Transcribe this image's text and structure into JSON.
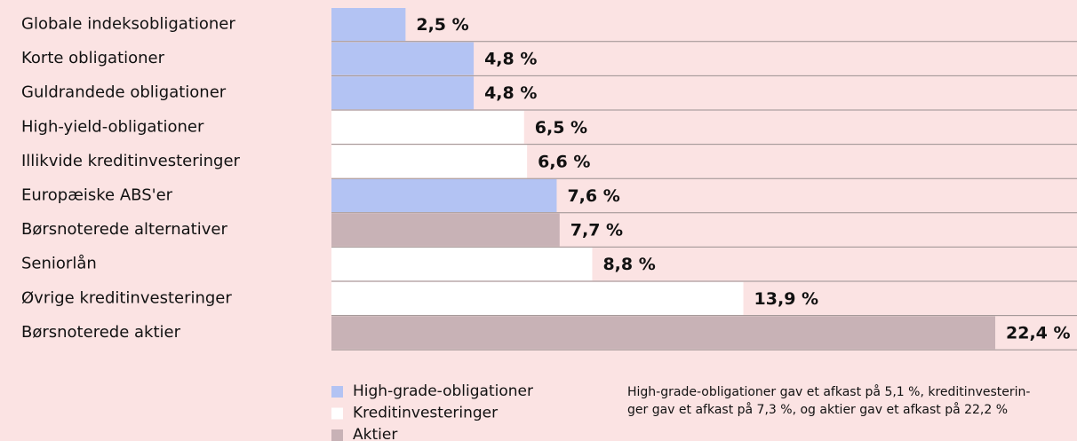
{
  "chart_data": {
    "type": "bar",
    "orientation": "horizontal",
    "categories": [
      "Globale indeksobligationer",
      "Korte obligationer",
      "Guldrandede obligationer",
      "High-yield-obligationer",
      "Illikvide kreditinvesteringer",
      "Europæiske ABS'er",
      "Børsnoterede alternativer",
      "Seniorlån",
      "Øvrige kreditinvesteringer",
      "Børsnoterede aktier"
    ],
    "series": [
      {
        "name": "High-grade-obligationer",
        "color": "#b3c3f3",
        "values": [
          2.5,
          4.8,
          4.8,
          null,
          null,
          7.6,
          null,
          null,
          null,
          null
        ],
        "value_labels": [
          "2,5 %",
          "4,8 %",
          "4,8 %",
          null,
          null,
          "7,6 %",
          null,
          null,
          null,
          null
        ]
      },
      {
        "name": "Kreditinvesteringer",
        "color": "#ffffff",
        "values": [
          null,
          null,
          null,
          6.5,
          6.6,
          null,
          null,
          8.8,
          13.9,
          null
        ],
        "value_labels": [
          null,
          null,
          null,
          "6,5 %",
          "6,6 %",
          null,
          null,
          "8,8 %",
          "13,9 %",
          null
        ]
      },
      {
        "name": "Aktier",
        "color": "#c8b2b6",
        "values": [
          null,
          null,
          null,
          null,
          null,
          null,
          7.7,
          null,
          null,
          22.4
        ],
        "value_labels": [
          null,
          null,
          null,
          null,
          null,
          null,
          "7,7 %",
          null,
          null,
          "22,4 %"
        ]
      }
    ],
    "legend": "bottom-left",
    "note": [
      "High-grade-obligationer gav et afkast på 5,1 %, kreditinvesterin-",
      "ger gav et afkast på 7,3 %, og aktier gav et afkast på 22,2 %"
    ]
  }
}
